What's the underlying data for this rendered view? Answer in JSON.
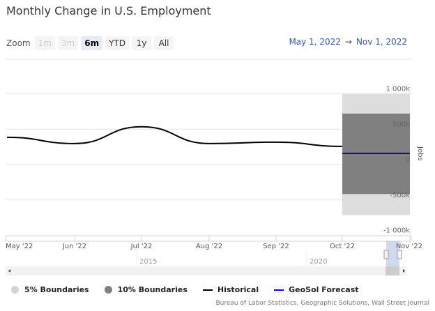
{
  "header": {
    "title": "Monthly Change in U.S. Employment"
  },
  "zoom": {
    "label": "Zoom",
    "buttons": [
      {
        "label": "1m",
        "state": "disabled"
      },
      {
        "label": "3m",
        "state": "disabled"
      },
      {
        "label": "6m",
        "state": "selected"
      },
      {
        "label": "YTD",
        "state": "normal"
      },
      {
        "label": "1y",
        "state": "normal"
      },
      {
        "label": "All",
        "state": "normal"
      }
    ]
  },
  "range": {
    "from": "May 1, 2022",
    "arrow": "→",
    "to": "Nov 1, 2022"
  },
  "chart_data": {
    "type": "line",
    "title": "Monthly Change in U.S. Employment",
    "ylabel": "Jobs",
    "ylim": [
      -1000,
      1000
    ],
    "yticks": [
      {
        "v": 1000,
        "label": "1 000k"
      },
      {
        "v": 500,
        "label": "500k"
      },
      {
        "v": 0,
        "label": "0"
      },
      {
        "v": -500,
        "label": "-500k"
      },
      {
        "v": -1000,
        "label": "-1 000k"
      }
    ],
    "xticks": [
      "May '22",
      "Jun '22",
      "Jul '22",
      "Aug '22",
      "Sep '22",
      "Oct '22",
      "Nov '22"
    ],
    "series": [
      {
        "name": "Historical",
        "color": "#000000",
        "x": [
          0,
          1,
          2,
          3,
          4,
          5
        ],
        "values": [
          386,
          297,
          535,
          297,
          317,
          257
        ]
      },
      {
        "name": "GeoSol Forecast",
        "color": "#0000ee",
        "x": [
          5,
          6
        ],
        "values": [
          158,
          158
        ]
      }
    ],
    "bands": [
      {
        "name": "5% Boundaries",
        "color": "#dddddd",
        "x": [
          5,
          6
        ],
        "low": -713,
        "high": 1000
      },
      {
        "name": "10% Boundaries",
        "color": "#808080",
        "x": [
          5,
          6
        ],
        "low": -416,
        "high": 720
      }
    ],
    "navigator": {
      "year_labels": [
        "2015",
        "2020"
      ]
    }
  },
  "legend": [
    {
      "label": "5% Boundaries",
      "color": "#d3d3d3",
      "kind": "dot"
    },
    {
      "label": "10% Boundaries",
      "color": "#808080",
      "kind": "dot"
    },
    {
      "label": "Historical",
      "color": "#000000",
      "kind": "line"
    },
    {
      "label": "GeoSol Forecast",
      "color": "#0000ee",
      "kind": "line"
    }
  ],
  "credits": "Bureau of Labor Statistics, Geographic Solutions, Wall Street Journal"
}
